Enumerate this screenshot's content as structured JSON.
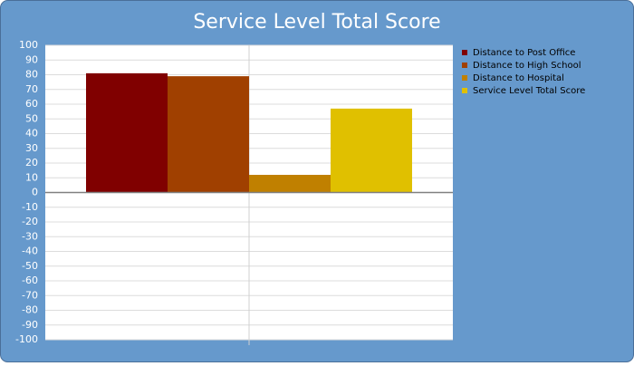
{
  "chart_data": {
    "type": "bar",
    "title": "Service Level Total Score",
    "categories": [
      null
    ],
    "series": [
      {
        "name": "Distance to Post Office",
        "color": "#800000",
        "values": [
          81
        ]
      },
      {
        "name": "Distance to High School",
        "color": "#a04000",
        "values": [
          79
        ]
      },
      {
        "name": "Distance to Hospital",
        "color": "#c08000",
        "values": [
          12
        ]
      },
      {
        "name": "Service Level Total Score",
        "color": "#e0c000",
        "values": [
          57
        ]
      }
    ],
    "ylim": [
      -100,
      100
    ],
    "yticks": [
      -100,
      -90,
      -80,
      -70,
      -60,
      -50,
      -40,
      -30,
      -20,
      -10,
      0,
      10,
      20,
      30,
      40,
      50,
      60,
      70,
      80,
      90,
      100
    ],
    "grid": true,
    "legend": "right"
  }
}
